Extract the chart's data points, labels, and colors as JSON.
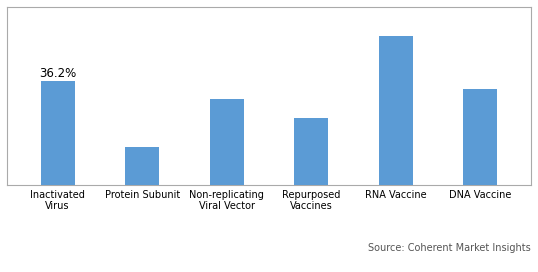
{
  "categories": [
    "Inactivated\nVirus",
    "Protein Subunit",
    "Non-replicating\nViral Vector",
    "Repurposed\nVaccines",
    "RNA Vaccine",
    "DNA Vaccine"
  ],
  "values": [
    36.2,
    13.5,
    30.0,
    23.5,
    52.0,
    33.5
  ],
  "bar_color": "#5B9BD5",
  "annotation_text": "36.2%",
  "annotation_bar_index": 0,
  "source_text": "Source: Coherent Market Insights",
  "source_fontsize": 7.0,
  "bar_width": 0.4,
  "ylim": [
    0,
    62
  ],
  "background_color": "#ffffff",
  "border_color": "#aaaaaa",
  "grid_color": "#cccccc",
  "grid_linewidth": 0.5,
  "tick_fontsize": 7.0,
  "annotation_fontsize": 8.5
}
